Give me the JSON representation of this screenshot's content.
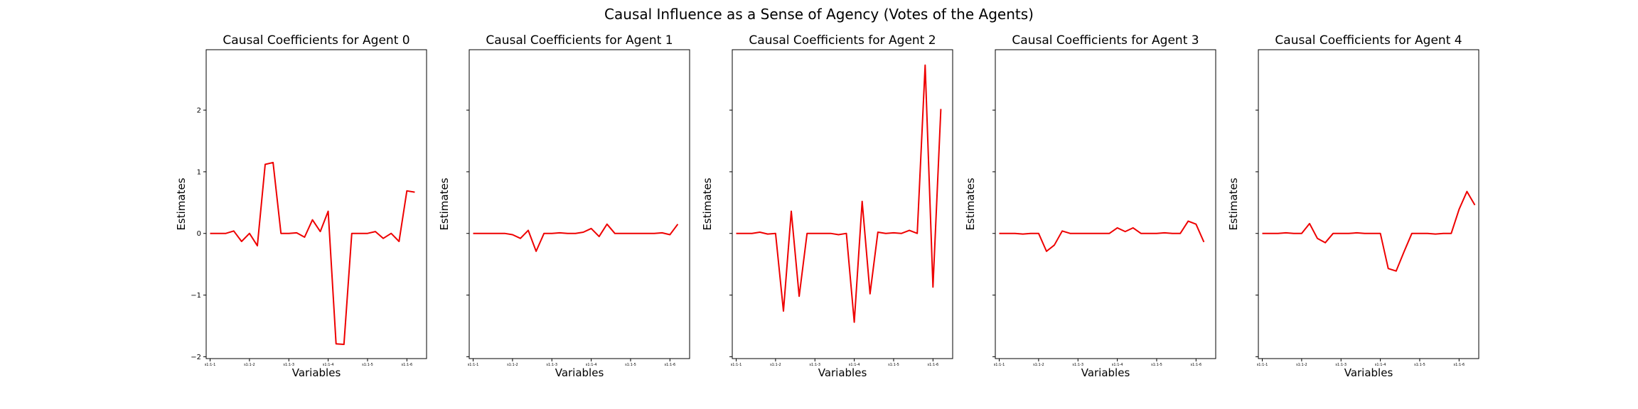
{
  "figure": {
    "suptitle": "Causal Influence as a Sense of Agency (Votes of the Agents)",
    "line_color": "#ee0000"
  },
  "chart_data": [
    {
      "type": "line",
      "title": "Causal Coefficients for Agent 0",
      "xlabel": "Variables",
      "ylabel": "Estimates",
      "ylim": [
        -2.03,
        2.98
      ],
      "yticks": [
        -2,
        -1,
        0,
        1,
        2
      ],
      "yticklabels": [
        "−2",
        "−1",
        "0",
        "1",
        "2"
      ],
      "xticks": [
        0,
        5,
        10,
        15,
        20,
        25
      ],
      "xticklabels": [
        "s1:1-1",
        "s1:1-2",
        "s1:1-3",
        "s1:1-4",
        "s1:1-5",
        "s1:1-6"
      ],
      "series": [
        {
          "values": [
            0.0,
            0.0,
            0.0,
            0.04,
            -0.13,
            0.0,
            -0.2,
            1.12,
            1.15,
            0.0,
            0.0,
            0.01,
            -0.06,
            0.22,
            0.03,
            0.36,
            -1.79,
            -1.8,
            0.0,
            0.0,
            0.0,
            0.03,
            -0.08,
            0.0,
            -0.13,
            0.69,
            0.67
          ]
        }
      ]
    },
    {
      "type": "line",
      "title": "Causal Coefficients for Agent 1",
      "xlabel": "Variables",
      "ylabel": "Estimates",
      "ylim": [
        -2.03,
        2.98
      ],
      "yticks": [
        -2,
        -1,
        0,
        1,
        2
      ],
      "xticks": [
        0,
        5,
        10,
        15,
        20,
        25
      ],
      "xticklabels": [
        "s1:1-1",
        "s1:1-2",
        "s1:1-3",
        "s1:1-4",
        "s1:1-5",
        "s1:1-6"
      ],
      "series": [
        {
          "values": [
            0.0,
            0.0,
            0.0,
            0.0,
            0.0,
            -0.02,
            -0.08,
            0.05,
            -0.29,
            0.0,
            0.0,
            0.01,
            0.0,
            0.0,
            0.02,
            0.08,
            -0.05,
            0.15,
            0.0,
            0.0,
            0.0,
            0.0,
            0.0,
            0.0,
            0.01,
            -0.02,
            0.15
          ]
        }
      ]
    },
    {
      "type": "line",
      "title": "Causal Coefficients for Agent 2",
      "xlabel": "Variables",
      "ylabel": "Estimates",
      "ylim": [
        -2.03,
        2.98
      ],
      "yticks": [
        -2,
        -1,
        0,
        1,
        2
      ],
      "xticks": [
        0,
        5,
        10,
        15,
        20,
        25
      ],
      "xticklabels": [
        "s1:1-1",
        "s1:1-2",
        "s1:1-3",
        "s1:1-4",
        "s1:1-5",
        "s1:1-6"
      ],
      "series": [
        {
          "values": [
            0.0,
            0.0,
            0.0,
            0.02,
            -0.01,
            0.0,
            -1.26,
            0.36,
            -1.02,
            0.0,
            0.0,
            0.0,
            0.0,
            -0.02,
            0.0,
            -1.44,
            0.52,
            -0.98,
            0.02,
            0.0,
            0.01,
            0.0,
            0.05,
            0.0,
            2.73,
            -0.87,
            2.02
          ]
        }
      ]
    },
    {
      "type": "line",
      "title": "Causal Coefficients for Agent 3",
      "xlabel": "Variables",
      "ylabel": "Estimates",
      "ylim": [
        -2.03,
        2.98
      ],
      "yticks": [
        -2,
        -1,
        0,
        1,
        2
      ],
      "xticks": [
        0,
        5,
        10,
        15,
        20,
        25
      ],
      "xticklabels": [
        "s1:1-1",
        "s1:1-2",
        "s1:1-3",
        "s1:1-4",
        "s1:1-5",
        "s1:1-6"
      ],
      "series": [
        {
          "values": [
            0.0,
            0.0,
            0.0,
            -0.01,
            0.0,
            0.0,
            -0.29,
            -0.19,
            0.04,
            0.0,
            0.0,
            0.0,
            0.0,
            0.0,
            0.0,
            0.09,
            0.03,
            0.09,
            0.0,
            0.0,
            0.0,
            0.01,
            0.0,
            0.0,
            0.2,
            0.15,
            -0.14
          ]
        }
      ]
    },
    {
      "type": "line",
      "title": "Causal Coefficients for Agent 4",
      "xlabel": "Variables",
      "ylabel": "Estimates",
      "ylim": [
        -2.03,
        2.98
      ],
      "yticks": [
        -2,
        -1,
        0,
        1,
        2
      ],
      "xticks": [
        0,
        5,
        10,
        15,
        20,
        25
      ],
      "xticklabels": [
        "s1:1-1",
        "s1:1-2",
        "s1:1-3",
        "s1:1-4",
        "s1:1-5",
        "s1:1-6"
      ],
      "series": [
        {
          "values": [
            0.0,
            0.0,
            0.0,
            0.01,
            0.0,
            0.0,
            0.16,
            -0.08,
            -0.15,
            0.0,
            0.0,
            0.0,
            0.01,
            0.0,
            0.0,
            0.0,
            -0.57,
            -0.61,
            -0.3,
            0.0,
            0.0,
            0.0,
            -0.01,
            0.0,
            0.0,
            0.39,
            0.68,
            0.46
          ]
        }
      ]
    }
  ]
}
